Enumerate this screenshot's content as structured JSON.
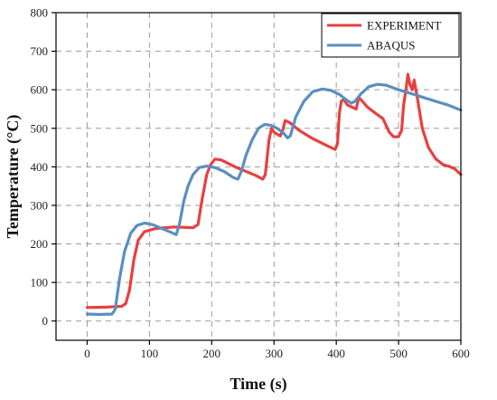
{
  "chart_data": {
    "type": "line",
    "xlabel": "Time (s)",
    "ylabel": "Temperature (°C)",
    "xlim": [
      -50,
      600
    ],
    "ylim": [
      -50,
      800
    ],
    "xticks": [
      0,
      100,
      200,
      300,
      400,
      500,
      600
    ],
    "yticks": [
      0,
      100,
      200,
      300,
      400,
      500,
      600,
      700,
      800
    ],
    "grid": true,
    "legend_position": "top-right",
    "series": [
      {
        "name": "EXPERIMENT",
        "color": "#e84040",
        "points": [
          [
            0,
            35
          ],
          [
            30,
            36
          ],
          [
            55,
            38
          ],
          [
            62,
            45
          ],
          [
            68,
            80
          ],
          [
            75,
            160
          ],
          [
            82,
            210
          ],
          [
            92,
            232
          ],
          [
            110,
            240
          ],
          [
            140,
            244
          ],
          [
            170,
            242
          ],
          [
            178,
            250
          ],
          [
            185,
            320
          ],
          [
            192,
            380
          ],
          [
            198,
            405
          ],
          [
            205,
            420
          ],
          [
            215,
            418
          ],
          [
            240,
            398
          ],
          [
            270,
            378
          ],
          [
            282,
            368
          ],
          [
            286,
            380
          ],
          [
            292,
            470
          ],
          [
            296,
            500
          ],
          [
            300,
            490
          ],
          [
            305,
            485
          ],
          [
            310,
            480
          ],
          [
            314,
            495
          ],
          [
            318,
            520
          ],
          [
            325,
            515
          ],
          [
            340,
            495
          ],
          [
            360,
            475
          ],
          [
            385,
            455
          ],
          [
            398,
            445
          ],
          [
            402,
            460
          ],
          [
            405,
            540
          ],
          [
            408,
            570
          ],
          [
            412,
            575
          ],
          [
            418,
            560
          ],
          [
            425,
            555
          ],
          [
            432,
            550
          ],
          [
            436,
            580
          ],
          [
            442,
            570
          ],
          [
            450,
            555
          ],
          [
            462,
            540
          ],
          [
            475,
            525
          ],
          [
            485,
            490
          ],
          [
            492,
            478
          ],
          [
            500,
            478
          ],
          [
            505,
            495
          ],
          [
            508,
            560
          ],
          [
            512,
            600
          ],
          [
            515,
            640
          ],
          [
            518,
            615
          ],
          [
            522,
            600
          ],
          [
            525,
            625
          ],
          [
            530,
            580
          ],
          [
            538,
            500
          ],
          [
            548,
            450
          ],
          [
            560,
            420
          ],
          [
            572,
            405
          ],
          [
            580,
            402
          ],
          [
            590,
            395
          ],
          [
            600,
            380
          ]
        ]
      },
      {
        "name": "ABAQUS",
        "color": "#5a8fc0",
        "points": [
          [
            0,
            18
          ],
          [
            20,
            17
          ],
          [
            40,
            18
          ],
          [
            45,
            30
          ],
          [
            52,
            110
          ],
          [
            60,
            180
          ],
          [
            70,
            228
          ],
          [
            80,
            248
          ],
          [
            92,
            254
          ],
          [
            105,
            250
          ],
          [
            120,
            240
          ],
          [
            135,
            230
          ],
          [
            143,
            224
          ],
          [
            148,
            250
          ],
          [
            155,
            310
          ],
          [
            162,
            350
          ],
          [
            170,
            380
          ],
          [
            180,
            398
          ],
          [
            192,
            402
          ],
          [
            205,
            398
          ],
          [
            220,
            388
          ],
          [
            235,
            372
          ],
          [
            242,
            368
          ],
          [
            248,
            390
          ],
          [
            255,
            430
          ],
          [
            265,
            470
          ],
          [
            275,
            500
          ],
          [
            285,
            510
          ],
          [
            295,
            508
          ],
          [
            305,
            500
          ],
          [
            315,
            488
          ],
          [
            322,
            475
          ],
          [
            326,
            480
          ],
          [
            335,
            530
          ],
          [
            348,
            570
          ],
          [
            362,
            595
          ],
          [
            378,
            602
          ],
          [
            392,
            598
          ],
          [
            405,
            588
          ],
          [
            415,
            575
          ],
          [
            424,
            565
          ],
          [
            430,
            570
          ],
          [
            440,
            590
          ],
          [
            452,
            608
          ],
          [
            466,
            614
          ],
          [
            480,
            612
          ],
          [
            500,
            600
          ],
          [
            520,
            590
          ],
          [
            540,
            580
          ],
          [
            560,
            570
          ],
          [
            580,
            560
          ],
          [
            600,
            547
          ]
        ]
      }
    ]
  }
}
